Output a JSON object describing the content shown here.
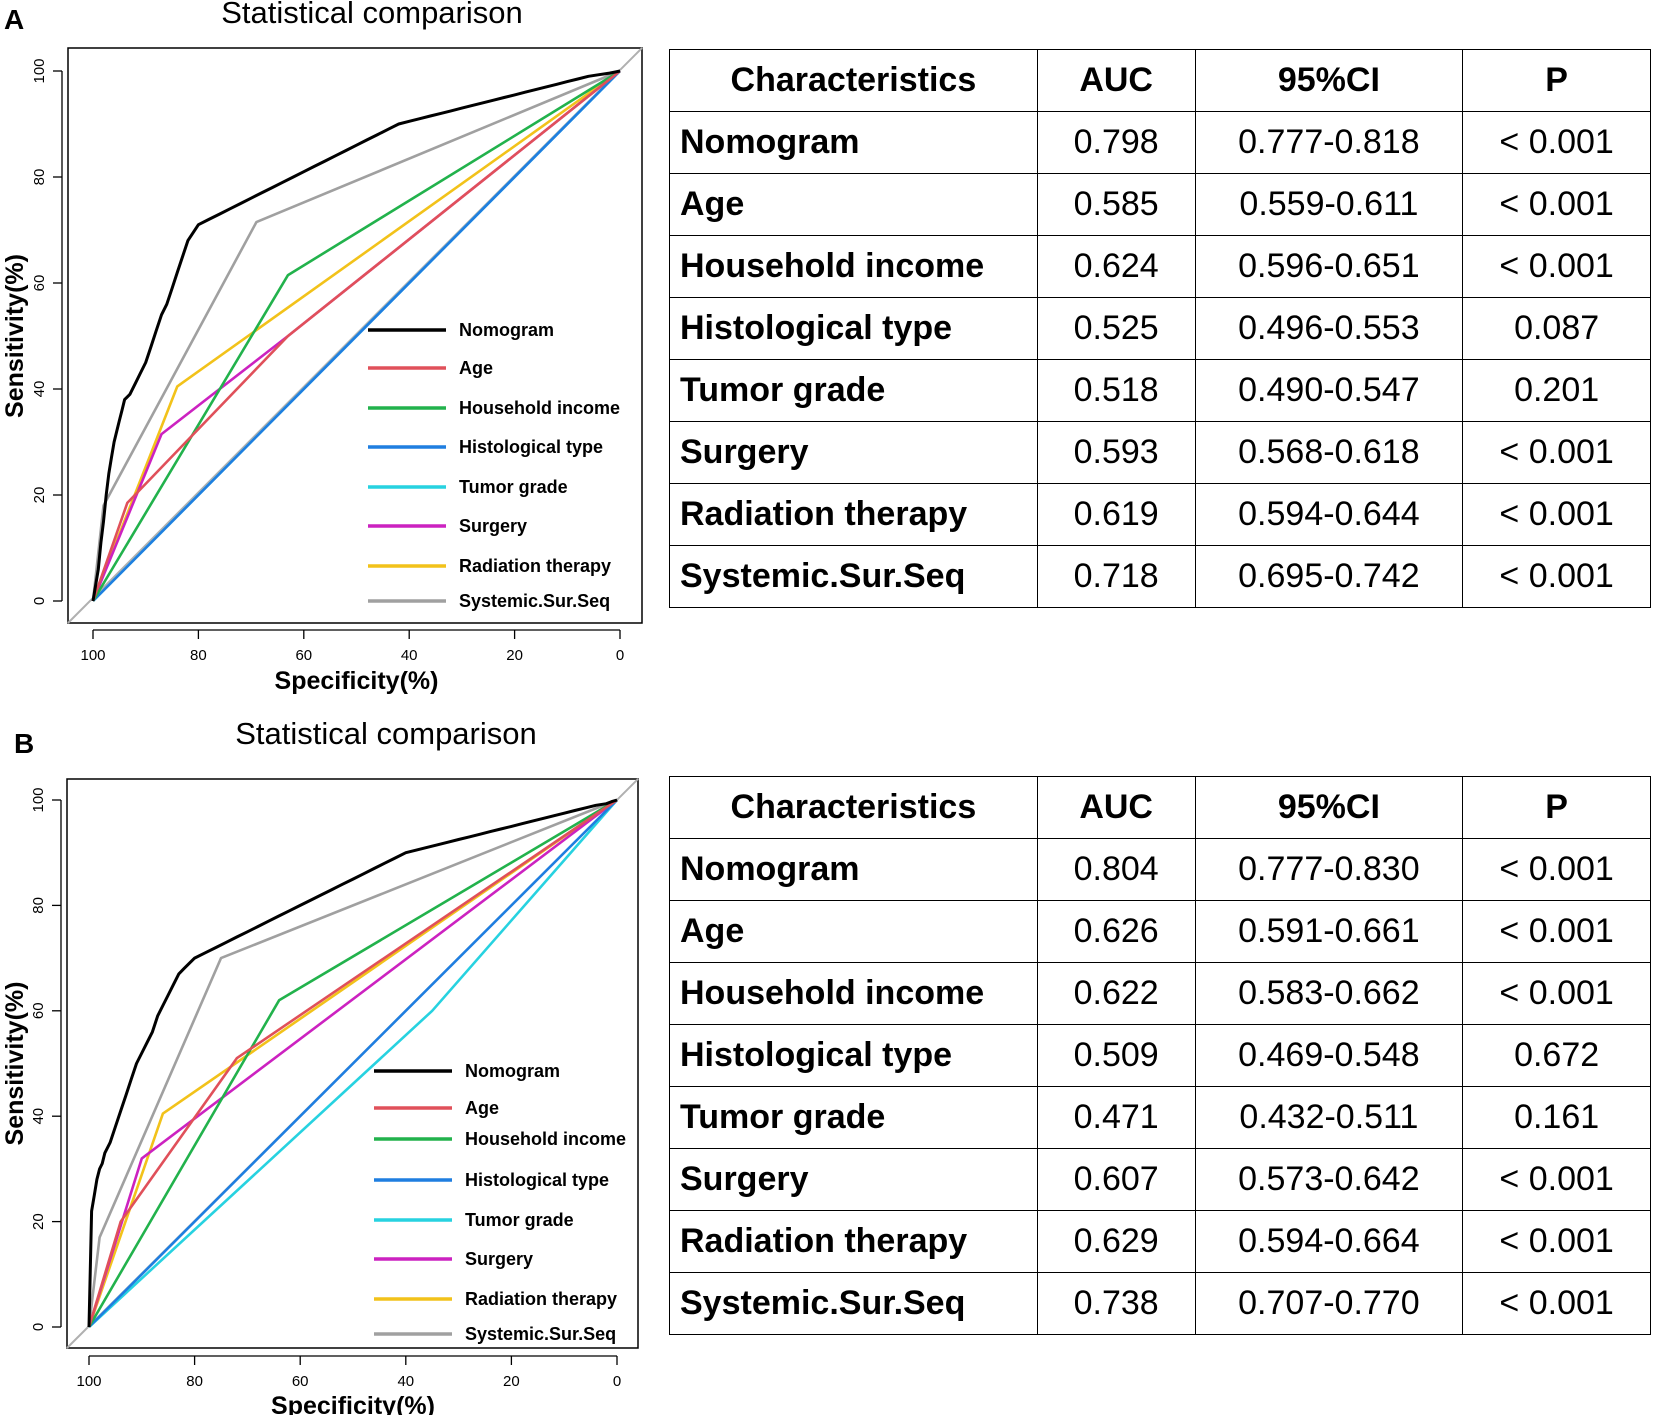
{
  "colors": {
    "Nomogram": "#000000",
    "Age": "#e0505a",
    "Household income": "#22b24c",
    "Histological type": "#1f7ee0",
    "Tumor grade": "#27d2e0",
    "Surgery": "#cc22c0",
    "Radiation therapy": "#f2c21a",
    "Systemic.Sur.Seq": "#a0a0a0",
    "diagonal": "#b0b0b0"
  },
  "panels": [
    {
      "letter": "A",
      "table": {
        "headers": [
          "Characteristics",
          "AUC",
          "95%CI",
          "P"
        ],
        "rows": [
          [
            "Nomogram",
            "0.798",
            "0.777-0.818",
            "< 0.001"
          ],
          [
            "Age",
            "0.585",
            "0.559-0.611",
            "< 0.001"
          ],
          [
            "Household income",
            "0.624",
            "0.596-0.651",
            "< 0.001"
          ],
          [
            "Histological type",
            "0.525",
            "0.496-0.553",
            "0.087"
          ],
          [
            "Tumor grade",
            "0.518",
            "0.490-0.547",
            "0.201"
          ],
          [
            "Surgery",
            "0.593",
            "0.568-0.618",
            "< 0.001"
          ],
          [
            "Radiation therapy",
            "0.619",
            "0.594-0.644",
            "< 0.001"
          ],
          [
            "Systemic.Sur.Seq",
            "0.718",
            "0.695-0.742",
            "< 0.001"
          ]
        ]
      }
    },
    {
      "letter": "B",
      "table": {
        "headers": [
          "Characteristics",
          "AUC",
          "95%CI",
          "P"
        ],
        "rows": [
          [
            "Nomogram",
            "0.804",
            "0.777-0.830",
            "< 0.001"
          ],
          [
            "Age",
            "0.626",
            "0.591-0.661",
            "< 0.001"
          ],
          [
            "Household income",
            "0.622",
            "0.583-0.662",
            "< 0.001"
          ],
          [
            "Histological type",
            "0.509",
            "0.469-0.548",
            "0.672"
          ],
          [
            "Tumor grade",
            "0.471",
            "0.432-0.511",
            "0.161"
          ],
          [
            "Surgery",
            "0.607",
            "0.573-0.642",
            "< 0.001"
          ],
          [
            "Radiation therapy",
            "0.629",
            "0.594-0.664",
            "< 0.001"
          ],
          [
            "Systemic.Sur.Seq",
            "0.738",
            "0.707-0.770",
            "< 0.001"
          ]
        ]
      }
    }
  ],
  "chart_data": [
    {
      "type": "line",
      "title": "Statistical comparison",
      "xlabel": "Specificity(%)",
      "ylabel": "Sensitivity(%)",
      "xlim": [
        100,
        0
      ],
      "ylim": [
        0,
        100
      ],
      "xticks": [
        "100",
        "80",
        "60",
        "40",
        "20",
        "0"
      ],
      "yticks": [
        "0",
        "20",
        "40",
        "60",
        "80",
        "100"
      ],
      "legend_position": "bottom-right",
      "legend": [
        "Nomogram",
        "Age",
        "Household income",
        "Histological type",
        "Tumor grade",
        "Surgery",
        "Radiation therapy",
        "Systemic.Sur.Seq"
      ],
      "series": [
        {
          "name": "Nomogram",
          "x": [
            100,
            99,
            98.5,
            98,
            97.5,
            97,
            96.5,
            96,
            95.5,
            95,
            94.5,
            94,
            93,
            92,
            91,
            90,
            89,
            88,
            87,
            86,
            85,
            84,
            83,
            82,
            80,
            78,
            76,
            74,
            72,
            70,
            68,
            66,
            64,
            62,
            60,
            58,
            56,
            54,
            52,
            50,
            48,
            46,
            44,
            42,
            40,
            38,
            36,
            34,
            32,
            30,
            28,
            26,
            24,
            22,
            20,
            18,
            16,
            14,
            12,
            10,
            8,
            6,
            4,
            2,
            1,
            0
          ],
          "y": [
            0,
            6,
            11,
            15,
            20,
            24,
            27,
            30,
            32,
            34,
            36,
            38,
            39,
            41,
            43,
            45,
            48,
            51,
            54,
            56,
            59,
            62,
            65,
            68,
            71,
            72,
            73,
            74,
            75,
            76,
            77,
            78,
            79,
            80,
            81,
            82,
            83,
            84,
            85,
            86,
            87,
            88,
            89,
            90,
            90.5,
            91,
            91.5,
            92,
            92.5,
            93,
            93.5,
            94,
            94.5,
            95,
            95.5,
            96,
            96.5,
            97,
            97.5,
            98,
            98.5,
            99,
            99.3,
            99.6,
            99.8,
            100
          ]
        },
        {
          "name": "Age",
          "x": [
            100,
            93.5,
            63,
            0
          ],
          "y": [
            0,
            18.5,
            50,
            100
          ]
        },
        {
          "name": "Household income",
          "x": [
            100,
            63,
            0
          ],
          "y": [
            0,
            61.5,
            100
          ]
        },
        {
          "name": "Histological type",
          "x": [
            100,
            0
          ],
          "y": [
            0,
            100
          ]
        },
        {
          "name": "Tumor grade",
          "x": [
            100,
            0
          ],
          "y": [
            0,
            100
          ]
        },
        {
          "name": "Surgery",
          "x": [
            100,
            87,
            63,
            0
          ],
          "y": [
            0,
            31.5,
            50,
            100
          ]
        },
        {
          "name": "Radiation therapy",
          "x": [
            100,
            84,
            0
          ],
          "y": [
            0,
            40.5,
            100
          ]
        },
        {
          "name": "Systemic.Sur.Seq",
          "x": [
            100,
            98,
            69,
            0
          ],
          "y": [
            0,
            18,
            71.5,
            100
          ]
        }
      ]
    },
    {
      "type": "line",
      "title": "Statistical comparison",
      "xlabel": "Specificity(%)",
      "ylabel": "Sensitivity(%)",
      "xlim": [
        100,
        0
      ],
      "ylim": [
        0,
        100
      ],
      "xticks": [
        "100",
        "80",
        "60",
        "40",
        "20",
        "0"
      ],
      "yticks": [
        "0",
        "20",
        "40",
        "60",
        "80",
        "100"
      ],
      "legend_position": "bottom-right",
      "legend": [
        "Nomogram",
        "Age",
        "Household income",
        "Histological type",
        "Tumor grade",
        "Surgery",
        "Radiation therapy",
        "Systemic.Sur.Seq"
      ],
      "series": [
        {
          "name": "Nomogram",
          "x": [
            100,
            99.5,
            99,
            98.5,
            98,
            97.5,
            97,
            96,
            95,
            94,
            93,
            92,
            91,
            90,
            89,
            88,
            87,
            86,
            85,
            84,
            83,
            82,
            80,
            78,
            76,
            74,
            72,
            70,
            68,
            66,
            64,
            62,
            60,
            58,
            56,
            54,
            52,
            50,
            48,
            46,
            44,
            42,
            40,
            38,
            36,
            34,
            32,
            30,
            28,
            26,
            24,
            22,
            20,
            18,
            16,
            14,
            12,
            10,
            8,
            6,
            4,
            2,
            1,
            0
          ],
          "y": [
            0,
            22,
            25,
            28,
            30,
            31,
            33,
            35,
            38,
            41,
            44,
            47,
            50,
            52,
            54,
            56,
            59,
            61,
            63,
            65,
            67,
            68,
            70,
            71,
            72,
            73,
            74,
            75,
            76,
            77,
            78,
            79,
            80,
            81,
            82,
            83,
            84,
            85,
            86,
            87,
            88,
            89,
            90,
            90.5,
            91,
            91.5,
            92,
            92.5,
            93,
            93.5,
            94,
            94.5,
            95,
            95.5,
            96,
            96.5,
            97,
            97.5,
            98,
            98.5,
            99,
            99.3,
            99.7,
            100
          ]
        },
        {
          "name": "Age",
          "x": [
            100,
            94,
            72,
            0
          ],
          "y": [
            0,
            20,
            51,
            100
          ]
        },
        {
          "name": "Household income",
          "x": [
            100,
            64,
            0
          ],
          "y": [
            0,
            62,
            100
          ]
        },
        {
          "name": "Histological type",
          "x": [
            100,
            0
          ],
          "y": [
            0,
            100
          ]
        },
        {
          "name": "Tumor grade",
          "x": [
            100,
            35,
            0
          ],
          "y": [
            0,
            60,
            100
          ]
        },
        {
          "name": "Surgery",
          "x": [
            100,
            90,
            0
          ],
          "y": [
            0,
            32,
            100
          ]
        },
        {
          "name": "Radiation therapy",
          "x": [
            100,
            86,
            0
          ],
          "y": [
            0,
            40.5,
            100
          ]
        },
        {
          "name": "Systemic.Sur.Seq",
          "x": [
            100,
            98,
            75,
            0
          ],
          "y": [
            0,
            17,
            70,
            100
          ]
        }
      ]
    }
  ]
}
